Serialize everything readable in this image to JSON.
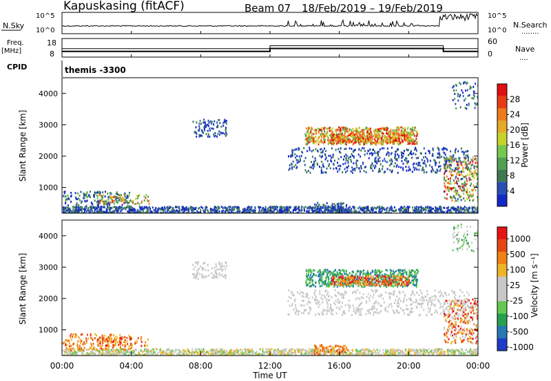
{
  "header": {
    "station": "Kapuskasing (fitACF)",
    "beam": "Beam 07",
    "date_range": "18/Feb/2019 – 19/Feb/2019"
  },
  "nsky_panel": {
    "left_label": "N.Sky",
    "right_label": "N.Search",
    "right_dots": "........",
    "ticks_left": [
      "10^5",
      "10^0"
    ],
    "ticks_right": [
      "10^5",
      "10^0"
    ]
  },
  "freq_panel": {
    "left_label_1": "Freq.",
    "left_label_2": "[MHz]",
    "right_label": "Nave",
    "right_dots": "....",
    "ticks_left": [
      "18",
      "8"
    ],
    "ticks_right": [
      "60",
      "0"
    ],
    "freq_series": [
      {
        "t_start": 0,
        "t_end": 12,
        "value": 11
      },
      {
        "t_start": 12,
        "t_end": 22,
        "value": 13
      },
      {
        "t_start": 22,
        "t_end": 24,
        "value": 11
      }
    ]
  },
  "cpid": {
    "label": "CPID",
    "value": "themis -3300"
  },
  "time_axis": {
    "label": "Time UT",
    "ticks": [
      "00:00",
      "04:00",
      "08:00",
      "12:00",
      "16:00",
      "20:00",
      "00:00"
    ],
    "range_hours": [
      0,
      24
    ]
  },
  "chart_data": [
    {
      "type": "heatmap",
      "name": "power",
      "ylabel": "Slant Range [km]",
      "ylim": [
        180,
        4500
      ],
      "yticks": [
        "1000",
        "2000",
        "3000",
        "4000"
      ],
      "colorbar": {
        "label": "Power [dB]",
        "ticks": [
          "4",
          "8",
          "12",
          "16",
          "20",
          "24",
          "28"
        ],
        "colors": [
          "#1428c8",
          "#2850b4",
          "#3c7850",
          "#50a050",
          "#78c850",
          "#c8d228",
          "#e6aa28",
          "#ee7a1e",
          "#e83c14",
          "#e01010"
        ]
      }
    },
    {
      "type": "heatmap",
      "name": "velocity",
      "ylabel": "Slant Range [km]",
      "ylim": [
        180,
        4500
      ],
      "yticks": [
        "1000",
        "2000",
        "3000",
        "4000"
      ],
      "colorbar": {
        "label": "Velocity [m s⁻¹]",
        "ticks": [
          "1000",
          "500",
          "100",
          "25",
          "-25",
          "-100",
          "-500",
          "-1000"
        ],
        "colors": [
          "#1e3cc8",
          "#2878b4",
          "#28a050",
          "#64c850",
          "#c8c8c8",
          "#c8c8c8",
          "#f0b428",
          "#f08214",
          "#e64614",
          "#e61414"
        ]
      }
    }
  ]
}
